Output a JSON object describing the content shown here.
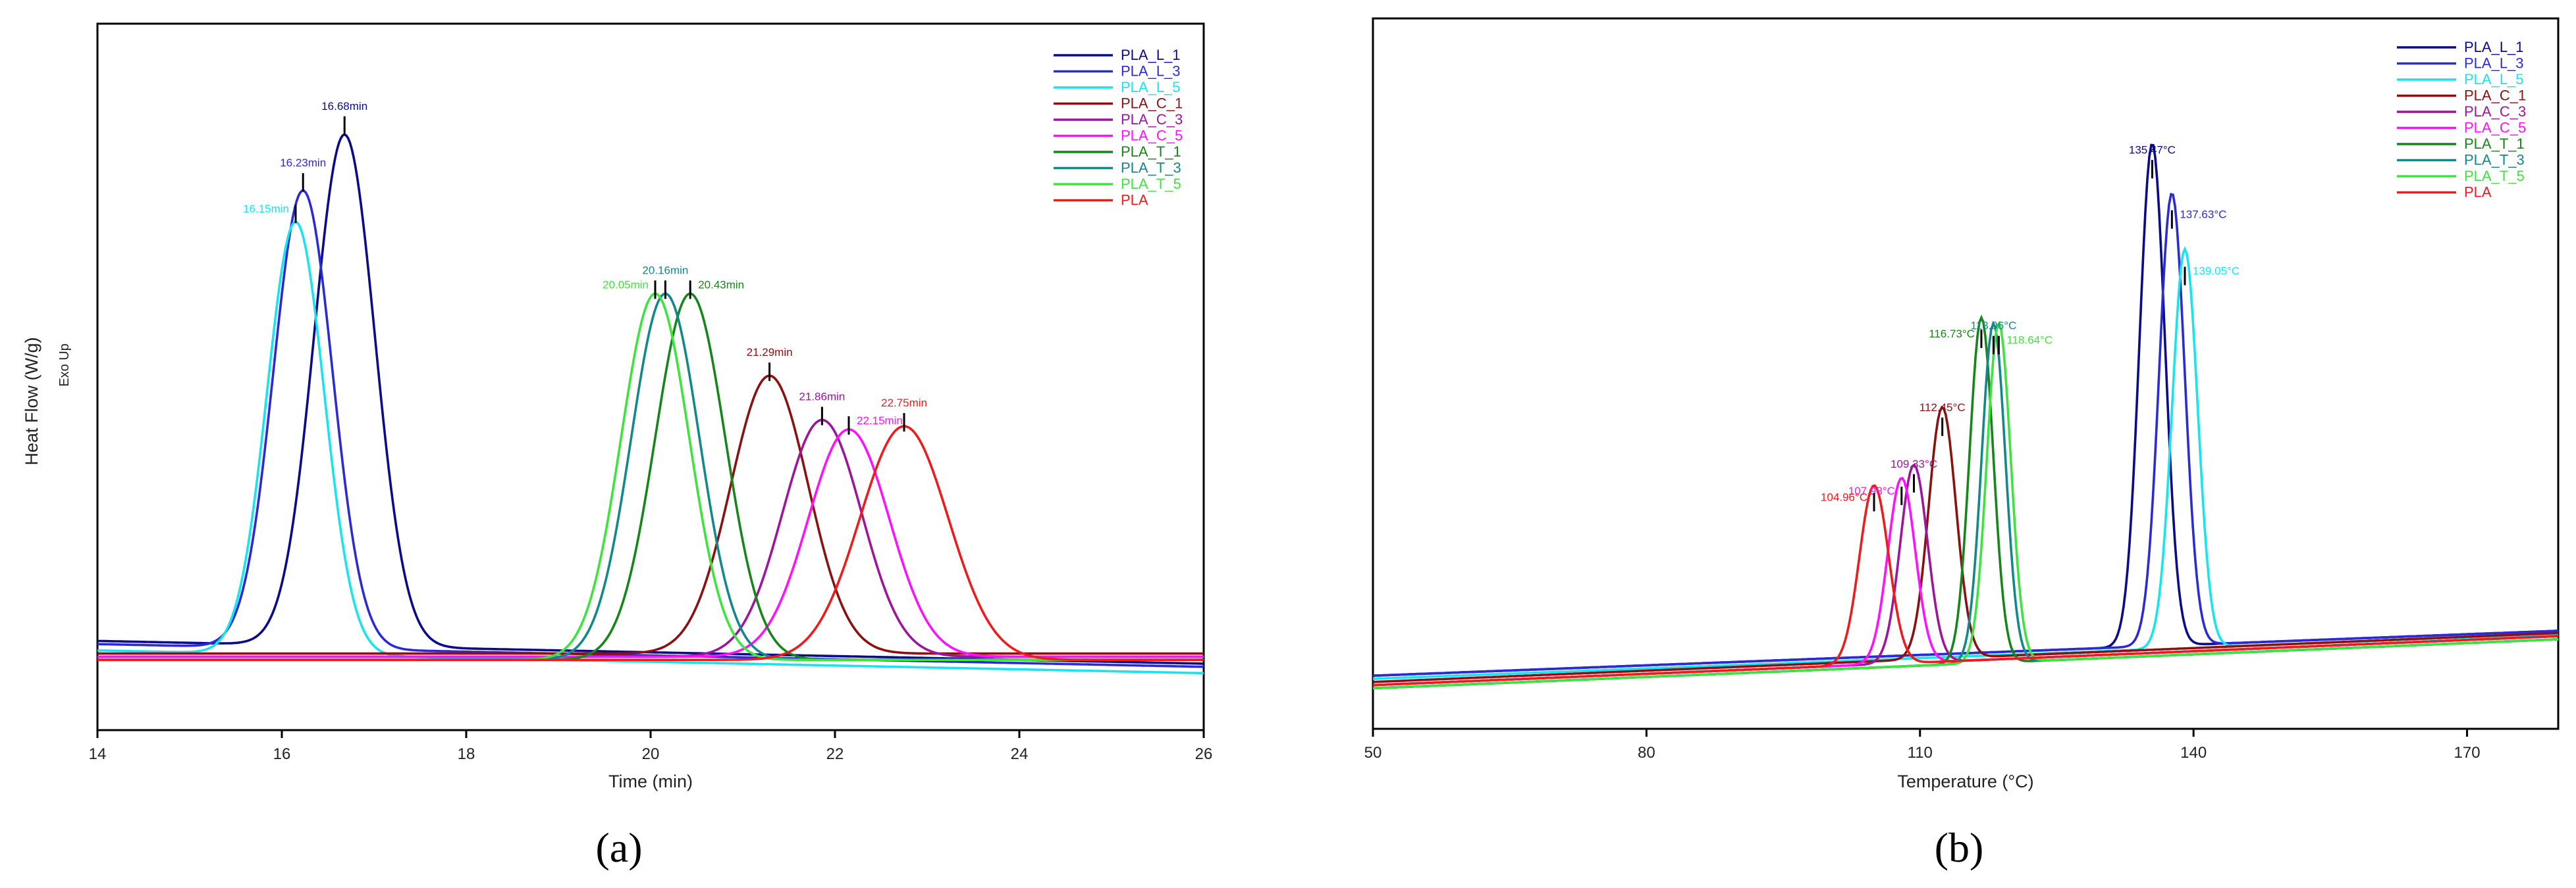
{
  "colors": {
    "PLA_L_1": "#0a0a8c",
    "PLA_L_3": "#2a2ad8",
    "PLA_L_5": "#18e4f0",
    "PLA_C_1": "#8b1010",
    "PLA_C_3": "#9c159c",
    "PLA_C_5": "#ff10ff",
    "PLA_T_1": "#16861a",
    "PLA_T_3": "#12888c",
    "PLA_T_5": "#3ee43e",
    "PLA": "#ef1b1b"
  },
  "chart_data": [
    {
      "type": "line",
      "panel_label": "(a)",
      "xlabel": "Time (min)",
      "ylabel": "Heat Flow (W/g)",
      "side_note": "Exo Up",
      "xlim": [
        14,
        26
      ],
      "ylim": [
        0,
        1
      ],
      "xticks": [
        "14",
        "16",
        "18",
        "20",
        "22",
        "24",
        "26"
      ],
      "legend": [
        "PLA_L_1",
        "PLA_L_3",
        "PLA_L_5",
        "PLA_C_1",
        "PLA_C_3",
        "PLA_C_5",
        "PLA_T_1",
        "PLA_T_3",
        "PLA_T_5",
        "PLA"
      ],
      "legend_position": "top-right",
      "series": [
        {
          "name": "PLA_L_1",
          "peak_x": 16.68,
          "peak_y": 0.92,
          "width": 0.33,
          "baseline": 0.11,
          "slope": -0.003,
          "label": "16.68min",
          "label_side": "center"
        },
        {
          "name": "PLA_L_3",
          "peak_x": 16.23,
          "peak_y": 0.83,
          "width": 0.32,
          "baseline": 0.105,
          "slope": -0.003,
          "label": "16.23min",
          "label_side": "center"
        },
        {
          "name": "PLA_L_5",
          "peak_x": 16.15,
          "peak_y": 0.78,
          "width": 0.31,
          "baseline": 0.095,
          "slope": -0.003,
          "label": "16.15min",
          "label_side": "left"
        },
        {
          "name": "PLA_C_1",
          "peak_x": 21.29,
          "peak_y": 0.53,
          "width": 0.42,
          "baseline": 0.09,
          "slope": 0.0,
          "label": "21.29min",
          "label_side": "center"
        },
        {
          "name": "PLA_C_3",
          "peak_x": 21.86,
          "peak_y": 0.46,
          "width": 0.43,
          "baseline": 0.085,
          "slope": 0.0,
          "label": "21.86min",
          "label_side": "center"
        },
        {
          "name": "PLA_C_5",
          "peak_x": 22.15,
          "peak_y": 0.445,
          "width": 0.44,
          "baseline": 0.085,
          "slope": 0.0,
          "label": "22.15min",
          "label_side": "right"
        },
        {
          "name": "PLA_T_1",
          "peak_x": 20.43,
          "peak_y": 0.66,
          "width": 0.38,
          "baseline": 0.08,
          "slope": 0.0,
          "label": "20.43min",
          "label_side": "right"
        },
        {
          "name": "PLA_T_3",
          "peak_x": 20.16,
          "peak_y": 0.66,
          "width": 0.37,
          "baseline": 0.08,
          "slope": 0.0,
          "label": "20.16min",
          "label_side": "center"
        },
        {
          "name": "PLA_T_5",
          "peak_x": 20.05,
          "peak_y": 0.66,
          "width": 0.37,
          "baseline": 0.08,
          "slope": 0.0,
          "label": "20.05min",
          "label_side": "left"
        },
        {
          "name": "PLA",
          "peak_x": 22.75,
          "peak_y": 0.45,
          "width": 0.48,
          "baseline": 0.08,
          "slope": 0.0,
          "label": "22.75min",
          "label_side": "center"
        }
      ]
    },
    {
      "type": "line",
      "panel_label": "(b)",
      "xlabel": "Temperature (°C)",
      "ylabel": "",
      "xlim": [
        50,
        180
      ],
      "ylim": [
        0,
        1
      ],
      "xticks": [
        "50",
        "80",
        "110",
        "140",
        "170"
      ],
      "legend": [
        "PLA_L_1",
        "PLA_L_3",
        "PLA_L_5",
        "PLA_C_1",
        "PLA_C_3",
        "PLA_C_5",
        "PLA_T_1",
        "PLA_T_3",
        "PLA_T_5",
        "PLA"
      ],
      "legend_position": "top-right",
      "series": [
        {
          "name": "PLA_L_1",
          "peak_x": 135.47,
          "peak_y": 0.85,
          "width": 1.4,
          "baseline": 0.05,
          "slope": 0.00055,
          "label": "135.47°C",
          "label_side": "center"
        },
        {
          "name": "PLA_L_3",
          "peak_x": 137.63,
          "peak_y": 0.77,
          "width": 1.4,
          "baseline": 0.05,
          "slope": 0.00055,
          "label": "137.63°C",
          "label_side": "right"
        },
        {
          "name": "PLA_L_5",
          "peak_x": 139.05,
          "peak_y": 0.68,
          "width": 1.4,
          "baseline": 0.045,
          "slope": 0.00055,
          "label": "139.05°C",
          "label_side": "right"
        },
        {
          "name": "PLA_C_1",
          "peak_x": 112.45,
          "peak_y": 0.44,
          "width": 1.5,
          "baseline": 0.04,
          "slope": 0.0006,
          "label": "112.45°C",
          "label_side": "center"
        },
        {
          "name": "PLA_C_3",
          "peak_x": 109.33,
          "peak_y": 0.35,
          "width": 1.5,
          "baseline": 0.035,
          "slope": 0.0006,
          "label": "109.33°C",
          "label_side": "center"
        },
        {
          "name": "PLA_C_5",
          "peak_x": 107.98,
          "peak_y": 0.33,
          "width": 1.5,
          "baseline": 0.035,
          "slope": 0.0006,
          "label": "107.98°C",
          "label_side": "left"
        },
        {
          "name": "PLA_T_1",
          "peak_x": 116.73,
          "peak_y": 0.58,
          "width": 1.3,
          "baseline": 0.03,
          "slope": 0.0006,
          "label": "116.73°C",
          "label_side": "left"
        },
        {
          "name": "PLA_T_3",
          "peak_x": 118.06,
          "peak_y": 0.57,
          "width": 1.3,
          "baseline": 0.03,
          "slope": 0.0006,
          "label": "118.06°C",
          "label_side": "center"
        },
        {
          "name": "PLA_T_5",
          "peak_x": 118.64,
          "peak_y": 0.57,
          "width": 1.3,
          "baseline": 0.03,
          "slope": 0.0006,
          "label": "118.64°C",
          "label_side": "right"
        },
        {
          "name": "PLA",
          "peak_x": 104.96,
          "peak_y": 0.32,
          "width": 1.6,
          "baseline": 0.035,
          "slope": 0.0006,
          "label": "104.96°C",
          "label_side": "left"
        }
      ]
    }
  ]
}
